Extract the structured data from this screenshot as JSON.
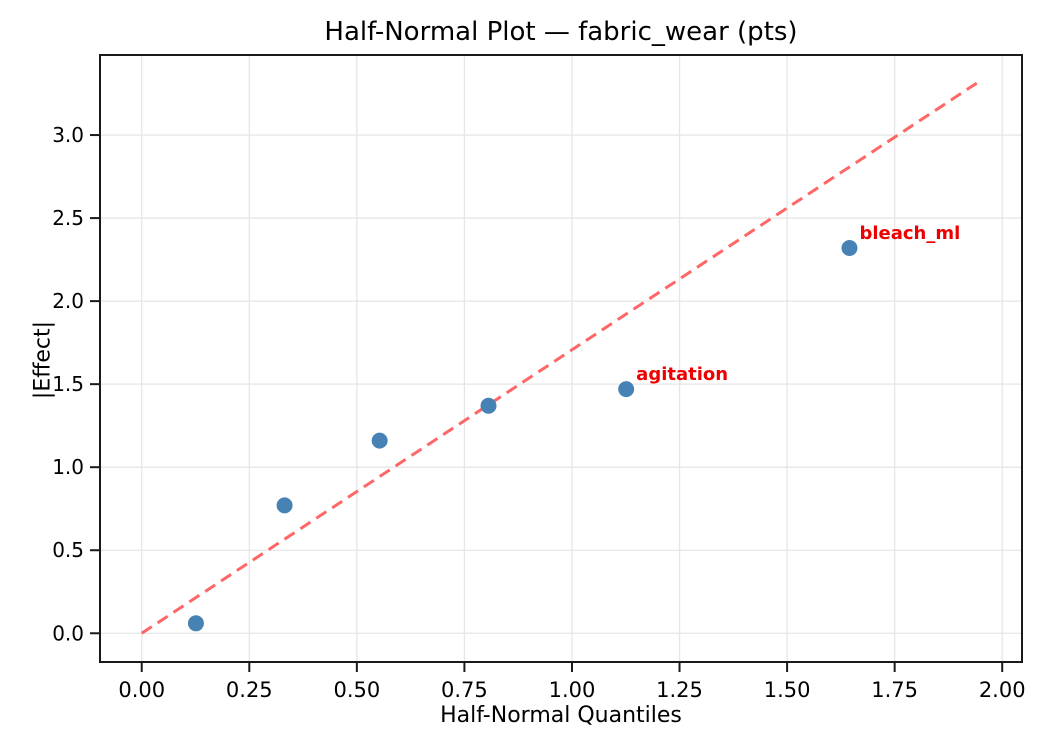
{
  "chart_data": {
    "type": "scatter",
    "title": "Half-Normal Plot — fabric_wear (pts)",
    "xlabel": "Half-Normal Quantiles",
    "ylabel": "|Effect|",
    "xlim": [
      -0.097,
      2.046
    ],
    "ylim": [
      -0.173,
      3.482
    ],
    "grid": true,
    "legend": "none",
    "x_ticks": [
      0.0,
      0.25,
      0.5,
      0.75,
      1.0,
      1.25,
      1.5,
      1.75,
      2.0
    ],
    "x_tick_labels": [
      "0.00",
      "0.25",
      "0.50",
      "0.75",
      "1.00",
      "1.25",
      "1.50",
      "1.75",
      "2.00"
    ],
    "y_ticks": [
      0.0,
      0.5,
      1.0,
      1.5,
      2.0,
      2.5,
      3.0
    ],
    "y_tick_labels": [
      "0.0",
      "0.5",
      "1.0",
      "1.5",
      "2.0",
      "2.5",
      "3.0"
    ],
    "points": [
      {
        "x": 0.126,
        "y": 0.06,
        "label": ""
      },
      {
        "x": 0.332,
        "y": 0.77,
        "label": ""
      },
      {
        "x": 0.553,
        "y": 1.16,
        "label": ""
      },
      {
        "x": 0.806,
        "y": 1.37,
        "label": ""
      },
      {
        "x": 1.126,
        "y": 1.47,
        "label": "agitation"
      },
      {
        "x": 1.645,
        "y": 2.32,
        "label": "bleach_ml"
      }
    ],
    "reference_line": {
      "style": "dashed",
      "start": [
        0.0,
        0.0
      ],
      "end": [
        1.945,
        3.32
      ]
    },
    "colors": {
      "marker": "#4682b4",
      "reference_line": "#ff6666",
      "annotation": "#ee0000",
      "grid": "#e6e6e6",
      "spine": "#1a1a1a",
      "tick_text": "#000000"
    }
  }
}
